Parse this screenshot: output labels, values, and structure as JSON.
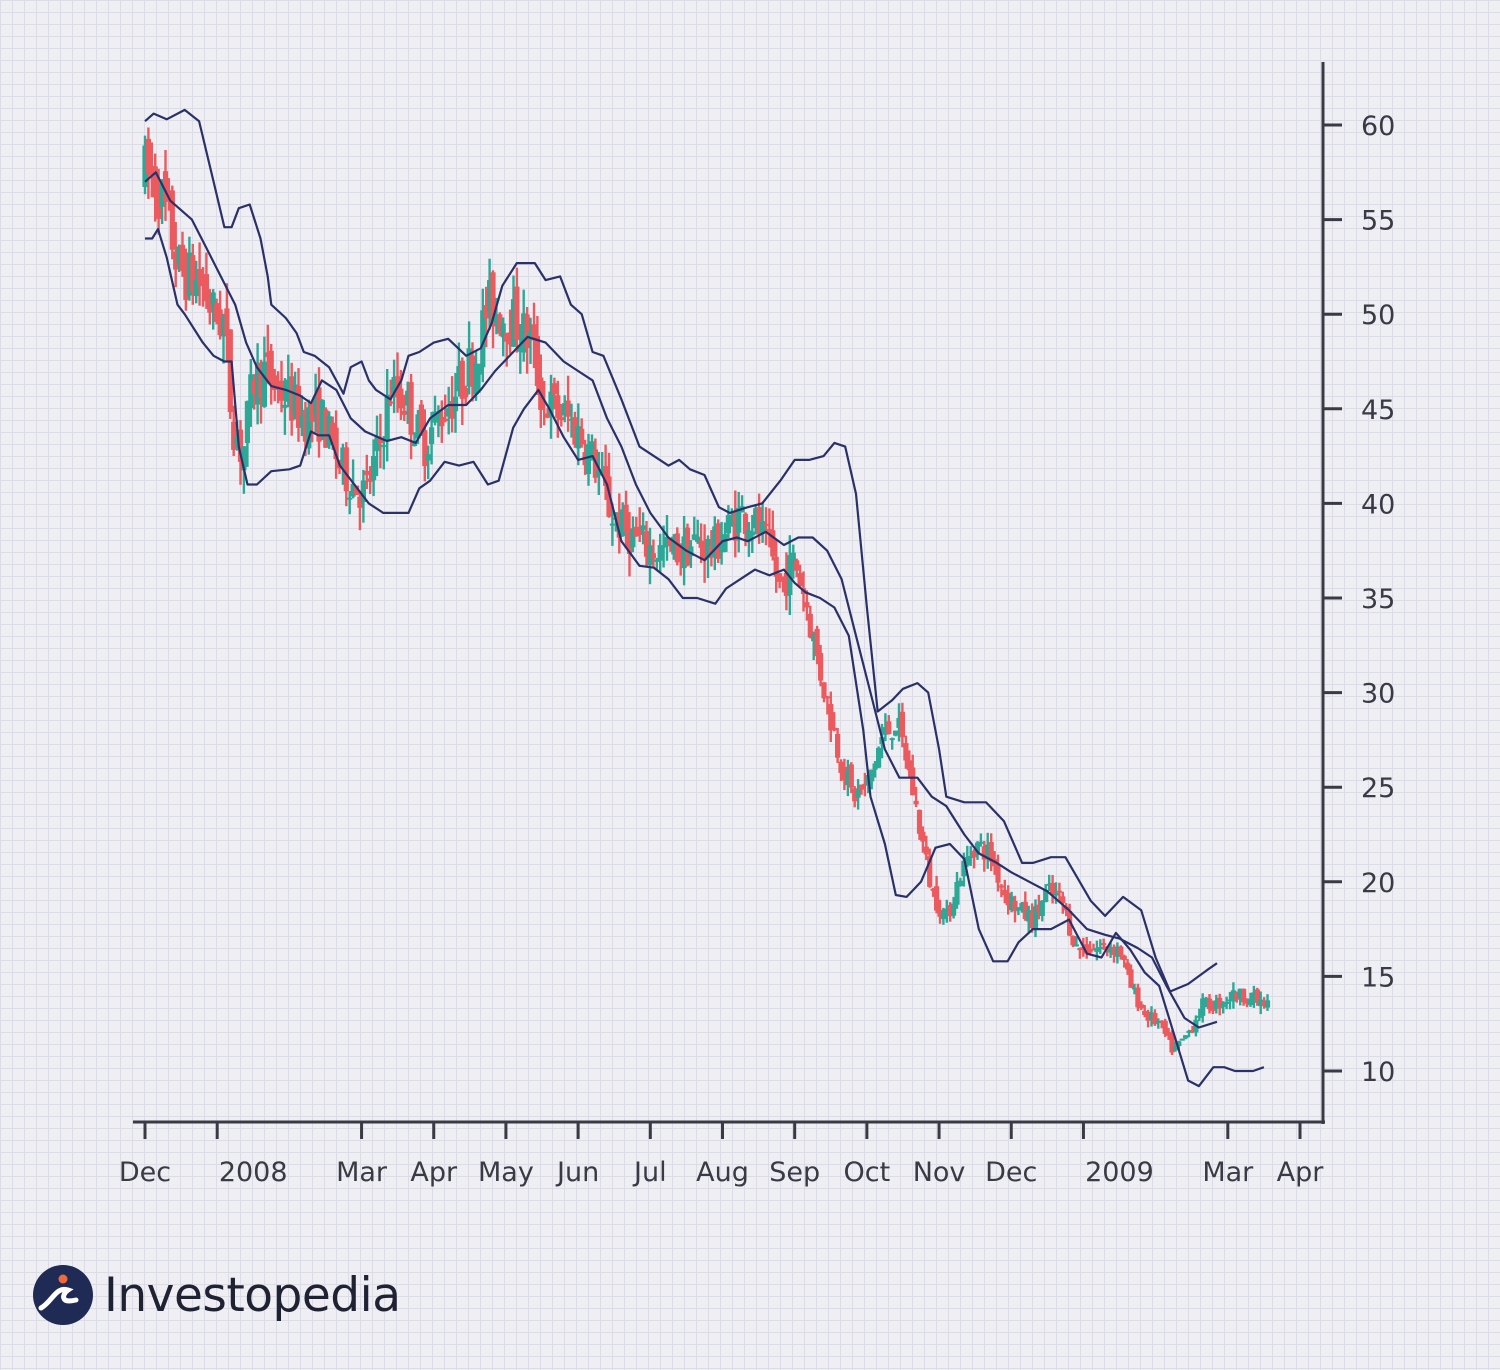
{
  "chart_data": {
    "type": "ohlc",
    "title": "",
    "xlabel": "",
    "ylabel": "",
    "ylim": [
      7.5,
      63.5
    ],
    "y_ticks": [
      60,
      55,
      50,
      45,
      40,
      35,
      30,
      25,
      20,
      15,
      10
    ],
    "x_tick_labels": [
      "Dec",
      "2008",
      "Mar",
      "Apr",
      "May",
      "Jun",
      "Jul",
      "Aug",
      "Sep",
      "Oct",
      "Nov",
      "Dec",
      "2009",
      "Mar",
      "Apr"
    ],
    "x_tick_months": [
      0,
      1,
      3,
      4,
      5,
      6,
      7,
      8,
      9,
      10,
      11,
      12,
      13,
      15,
      16
    ],
    "x_range_months": [
      0,
      16
    ],
    "colors": {
      "up": "#2ea896",
      "down": "#ea5a5f",
      "bands": "#2a3168",
      "axis": "#3a3a44"
    },
    "series": [
      {
        "name": "",
        "role": "upper_band",
        "points": [
          [
            0.0,
            60.2
          ],
          [
            0.12,
            60.6
          ],
          [
            0.3,
            60.3
          ],
          [
            0.55,
            60.8
          ],
          [
            0.75,
            60.2
          ],
          [
            0.95,
            57.0
          ],
          [
            1.1,
            54.6
          ],
          [
            1.2,
            54.6
          ],
          [
            1.3,
            55.6
          ],
          [
            1.45,
            55.8
          ],
          [
            1.6,
            54.0
          ],
          [
            1.7,
            52.0
          ],
          [
            1.75,
            50.5
          ],
          [
            1.95,
            49.8
          ],
          [
            2.1,
            49.0
          ],
          [
            2.2,
            48.0
          ],
          [
            2.35,
            47.8
          ],
          [
            2.55,
            47.2
          ],
          [
            2.75,
            45.8
          ],
          [
            2.85,
            47.2
          ],
          [
            3.0,
            47.5
          ],
          [
            3.1,
            46.5
          ],
          [
            3.2,
            46.0
          ],
          [
            3.4,
            45.5
          ],
          [
            3.55,
            46.5
          ],
          [
            3.65,
            47.8
          ],
          [
            3.8,
            48.0
          ],
          [
            4.0,
            48.5
          ],
          [
            4.2,
            48.7
          ],
          [
            4.45,
            47.8
          ],
          [
            4.65,
            48.2
          ],
          [
            4.8,
            49.5
          ],
          [
            4.95,
            51.5
          ],
          [
            5.15,
            52.7
          ],
          [
            5.4,
            52.7
          ],
          [
            5.55,
            51.8
          ],
          [
            5.75,
            52.0
          ],
          [
            5.9,
            50.5
          ],
          [
            6.05,
            50.0
          ],
          [
            6.2,
            48.0
          ],
          [
            6.35,
            47.8
          ],
          [
            6.6,
            45.5
          ],
          [
            6.85,
            43.0
          ],
          [
            7.05,
            42.5
          ],
          [
            7.25,
            42.0
          ],
          [
            7.4,
            42.3
          ],
          [
            7.55,
            41.8
          ],
          [
            7.75,
            41.5
          ],
          [
            7.95,
            39.8
          ],
          [
            8.1,
            39.5
          ],
          [
            8.35,
            39.8
          ],
          [
            8.55,
            40.0
          ],
          [
            8.8,
            41.2
          ],
          [
            9.0,
            42.3
          ],
          [
            9.2,
            42.3
          ],
          [
            9.4,
            42.5
          ],
          [
            9.55,
            43.2
          ],
          [
            9.7,
            43.0
          ],
          [
            9.85,
            40.5
          ],
          [
            10.0,
            34.5
          ],
          [
            10.15,
            29.0
          ],
          [
            10.35,
            29.6
          ],
          [
            10.5,
            30.2
          ],
          [
            10.7,
            30.5
          ],
          [
            10.85,
            30.0
          ],
          [
            11.0,
            27.0
          ],
          [
            11.1,
            24.5
          ],
          [
            11.35,
            24.2
          ],
          [
            11.65,
            24.2
          ],
          [
            11.9,
            23.2
          ],
          [
            12.15,
            21.0
          ],
          [
            12.3,
            21.0
          ],
          [
            12.55,
            21.3
          ],
          [
            12.75,
            21.3
          ],
          [
            13.1,
            19.0
          ],
          [
            13.3,
            18.2
          ],
          [
            13.55,
            19.2
          ],
          [
            13.8,
            18.5
          ],
          [
            14.0,
            16.0
          ],
          [
            14.2,
            14.2
          ],
          [
            14.45,
            14.6
          ],
          [
            14.7,
            15.3
          ],
          [
            14.85,
            15.7
          ]
        ]
      },
      {
        "name": "",
        "role": "middle_band",
        "points": [
          [
            0.0,
            57.0
          ],
          [
            0.15,
            57.5
          ],
          [
            0.35,
            56.0
          ],
          [
            0.65,
            55.0
          ],
          [
            0.85,
            53.5
          ],
          [
            1.05,
            52.0
          ],
          [
            1.25,
            50.5
          ],
          [
            1.4,
            48.5
          ],
          [
            1.55,
            47.2
          ],
          [
            1.75,
            46.2
          ],
          [
            1.95,
            46.0
          ],
          [
            2.15,
            45.7
          ],
          [
            2.3,
            45.3
          ],
          [
            2.45,
            46.5
          ],
          [
            2.65,
            46.0
          ],
          [
            2.85,
            44.5
          ],
          [
            3.05,
            43.8
          ],
          [
            3.35,
            43.3
          ],
          [
            3.55,
            43.5
          ],
          [
            3.75,
            43.2
          ],
          [
            3.95,
            44.5
          ],
          [
            4.2,
            45.2
          ],
          [
            4.45,
            45.2
          ],
          [
            4.65,
            46.0
          ],
          [
            4.85,
            47.0
          ],
          [
            5.1,
            48.0
          ],
          [
            5.3,
            48.8
          ],
          [
            5.55,
            48.5
          ],
          [
            5.8,
            47.5
          ],
          [
            6.0,
            47.0
          ],
          [
            6.2,
            46.5
          ],
          [
            6.4,
            44.5
          ],
          [
            6.6,
            43.0
          ],
          [
            6.8,
            41.0
          ],
          [
            7.0,
            39.5
          ],
          [
            7.25,
            38.2
          ],
          [
            7.5,
            37.5
          ],
          [
            7.75,
            37.0
          ],
          [
            8.0,
            38.0
          ],
          [
            8.2,
            38.2
          ],
          [
            8.35,
            38.0
          ],
          [
            8.6,
            38.5
          ],
          [
            8.85,
            37.8
          ],
          [
            9.05,
            38.2
          ],
          [
            9.25,
            38.2
          ],
          [
            9.45,
            37.5
          ],
          [
            9.65,
            36.0
          ],
          [
            9.85,
            33.0
          ],
          [
            10.05,
            30.0
          ],
          [
            10.25,
            27.0
          ],
          [
            10.45,
            25.5
          ],
          [
            10.7,
            25.5
          ],
          [
            10.9,
            24.5
          ],
          [
            11.1,
            24.0
          ],
          [
            11.35,
            22.5
          ],
          [
            11.55,
            21.5
          ],
          [
            11.8,
            21.0
          ],
          [
            12.0,
            20.5
          ],
          [
            12.25,
            20.0
          ],
          [
            12.5,
            19.5
          ],
          [
            12.8,
            18.5
          ],
          [
            13.05,
            17.5
          ],
          [
            13.3,
            17.2
          ],
          [
            13.5,
            17.0
          ],
          [
            13.75,
            16.5
          ],
          [
            13.95,
            16.0
          ],
          [
            14.15,
            14.5
          ],
          [
            14.4,
            12.8
          ],
          [
            14.6,
            12.3
          ],
          [
            14.85,
            12.6
          ]
        ]
      },
      {
        "name": "",
        "role": "lower_band",
        "points": [
          [
            0.0,
            54.0
          ],
          [
            0.1,
            54.0
          ],
          [
            0.18,
            54.5
          ],
          [
            0.3,
            53.0
          ],
          [
            0.45,
            50.5
          ],
          [
            0.55,
            50.0
          ],
          [
            0.8,
            48.5
          ],
          [
            0.95,
            47.8
          ],
          [
            1.1,
            47.5
          ],
          [
            1.2,
            47.5
          ],
          [
            1.3,
            43.0
          ],
          [
            1.42,
            41.0
          ],
          [
            1.55,
            41.0
          ],
          [
            1.75,
            41.7
          ],
          [
            2.0,
            41.8
          ],
          [
            2.15,
            42.0
          ],
          [
            2.3,
            43.8
          ],
          [
            2.4,
            43.6
          ],
          [
            2.55,
            43.6
          ],
          [
            2.7,
            42.0
          ],
          [
            2.9,
            41.0
          ],
          [
            3.1,
            40.0
          ],
          [
            3.3,
            39.5
          ],
          [
            3.5,
            39.5
          ],
          [
            3.65,
            39.5
          ],
          [
            3.8,
            40.8
          ],
          [
            3.95,
            41.2
          ],
          [
            4.15,
            42.2
          ],
          [
            4.35,
            42.0
          ],
          [
            4.55,
            42.2
          ],
          [
            4.75,
            41.0
          ],
          [
            4.9,
            41.2
          ],
          [
            5.1,
            44.0
          ],
          [
            5.25,
            45.0
          ],
          [
            5.45,
            46.0
          ],
          [
            5.6,
            45.0
          ],
          [
            5.8,
            43.5
          ],
          [
            6.0,
            42.3
          ],
          [
            6.2,
            42.5
          ],
          [
            6.4,
            41.0
          ],
          [
            6.6,
            38.0
          ],
          [
            6.85,
            36.7
          ],
          [
            7.05,
            36.6
          ],
          [
            7.25,
            36.0
          ],
          [
            7.45,
            35.0
          ],
          [
            7.65,
            35.0
          ],
          [
            7.9,
            34.7
          ],
          [
            8.05,
            35.5
          ],
          [
            8.25,
            36.0
          ],
          [
            8.45,
            36.5
          ],
          [
            8.65,
            36.2
          ],
          [
            8.85,
            36.5
          ],
          [
            9.0,
            35.8
          ],
          [
            9.15,
            35.3
          ],
          [
            9.35,
            35.0
          ],
          [
            9.55,
            34.5
          ],
          [
            9.75,
            33.0
          ],
          [
            9.95,
            28.0
          ],
          [
            10.05,
            24.5
          ],
          [
            10.25,
            22.0
          ],
          [
            10.4,
            19.3
          ],
          [
            10.55,
            19.2
          ],
          [
            10.75,
            20.0
          ],
          [
            10.95,
            21.8
          ],
          [
            11.15,
            22.0
          ],
          [
            11.35,
            21.2
          ],
          [
            11.55,
            17.5
          ],
          [
            11.75,
            15.8
          ],
          [
            11.95,
            15.8
          ],
          [
            12.1,
            16.8
          ],
          [
            12.3,
            17.5
          ],
          [
            12.55,
            17.5
          ],
          [
            12.8,
            18.0
          ],
          [
            13.05,
            16.2
          ],
          [
            13.25,
            16.0
          ],
          [
            13.45,
            17.3
          ],
          [
            13.65,
            16.4
          ],
          [
            13.85,
            15.2
          ],
          [
            14.05,
            14.5
          ],
          [
            14.25,
            12.0
          ],
          [
            14.45,
            9.5
          ],
          [
            14.6,
            9.2
          ],
          [
            14.8,
            10.2
          ],
          [
            14.95,
            10.2
          ],
          [
            15.1,
            10.0
          ],
          [
            15.35,
            10.0
          ],
          [
            15.5,
            10.2
          ]
        ]
      }
    ],
    "ohlc_anchors": [
      [
        0.0,
        57.5
      ],
      [
        0.15,
        57.0
      ],
      [
        0.35,
        54.5
      ],
      [
        0.45,
        52.5
      ],
      [
        0.6,
        52.0
      ],
      [
        0.8,
        51.5
      ],
      [
        0.95,
        50.0
      ],
      [
        1.1,
        49.5
      ],
      [
        1.2,
        44.5
      ],
      [
        1.35,
        42.5
      ],
      [
        1.5,
        46.5
      ],
      [
        1.65,
        47.0
      ],
      [
        1.85,
        46.0
      ],
      [
        2.0,
        45.5
      ],
      [
        2.2,
        44.5
      ],
      [
        2.45,
        44.5
      ],
      [
        2.7,
        42.0
      ],
      [
        2.9,
        41.0
      ],
      [
        3.05,
        40.5
      ],
      [
        3.25,
        43.0
      ],
      [
        3.4,
        46.0
      ],
      [
        3.6,
        45.5
      ],
      [
        3.85,
        43.0
      ],
      [
        4.05,
        44.5
      ],
      [
        4.25,
        45.5
      ],
      [
        4.4,
        46.5
      ],
      [
        4.6,
        48.0
      ],
      [
        4.75,
        50.5
      ],
      [
        4.95,
        50.0
      ],
      [
        5.15,
        49.5
      ],
      [
        5.35,
        48.5
      ],
      [
        5.5,
        45.5
      ],
      [
        5.65,
        45.0
      ],
      [
        5.85,
        44.5
      ],
      [
        6.05,
        43.5
      ],
      [
        6.25,
        42.0
      ],
      [
        6.45,
        39.5
      ],
      [
        6.65,
        38.5
      ],
      [
        6.85,
        38.0
      ],
      [
        7.05,
        37.5
      ],
      [
        7.25,
        37.5
      ],
      [
        7.45,
        37.5
      ],
      [
        7.65,
        38.0
      ],
      [
        7.85,
        37.5
      ],
      [
        8.05,
        38.5
      ],
      [
        8.25,
        39.5
      ],
      [
        8.45,
        39.0
      ],
      [
        8.65,
        37.5
      ],
      [
        8.8,
        35.5
      ],
      [
        9.0,
        37.0
      ],
      [
        9.15,
        35.0
      ],
      [
        9.3,
        32.0
      ],
      [
        9.45,
        29.5
      ],
      [
        9.6,
        27.0
      ],
      [
        9.8,
        24.5
      ],
      [
        10.0,
        25.0
      ],
      [
        10.2,
        27.5
      ],
      [
        10.4,
        28.5
      ],
      [
        10.55,
        26.5
      ],
      [
        10.7,
        23.5
      ],
      [
        10.9,
        19.5
      ],
      [
        11.1,
        18.0
      ],
      [
        11.3,
        20.5
      ],
      [
        11.5,
        22.0
      ],
      [
        11.7,
        21.5
      ],
      [
        11.9,
        19.5
      ],
      [
        12.1,
        18.5
      ],
      [
        12.3,
        18.0
      ],
      [
        12.5,
        19.5
      ],
      [
        12.7,
        19.0
      ],
      [
        12.9,
        16.5
      ],
      [
        13.1,
        16.5
      ],
      [
        13.3,
        16.5
      ],
      [
        13.5,
        16.5
      ],
      [
        13.65,
        14.5
      ],
      [
        13.85,
        13.0
      ],
      [
        14.05,
        12.5
      ],
      [
        14.25,
        11.0
      ],
      [
        14.45,
        12.0
      ],
      [
        14.65,
        13.5
      ],
      [
        14.85,
        13.5
      ],
      [
        15.05,
        14.0
      ],
      [
        15.25,
        14.0
      ],
      [
        15.5,
        13.5
      ]
    ]
  },
  "brand": {
    "name": "Investopedia",
    "icon": "investopedia-logo-mark"
  }
}
